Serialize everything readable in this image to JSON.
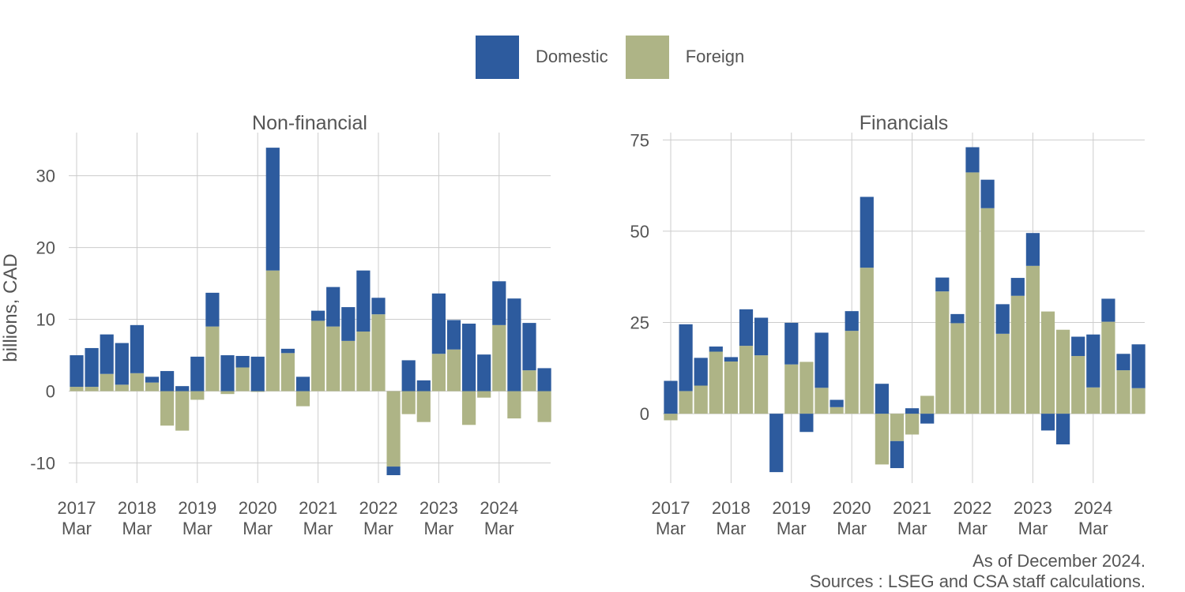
{
  "legend": [
    {
      "label": "Domestic",
      "color": "#2d5b9e"
    },
    {
      "label": "Foreign",
      "color": "#aeb486"
    }
  ],
  "caption": {
    "line1": "As of December 2024.",
    "line2": "Sources : LSEG and CSA staff calculations."
  },
  "ylabel": "billions, CAD",
  "chart_data": [
    {
      "type": "bar",
      "stacked": true,
      "title": "Non-financial",
      "ylabel": "billions, CAD",
      "ylim": [
        -12.8,
        36
      ],
      "yticks": [
        -10,
        0,
        10,
        20,
        30
      ],
      "ytick_labels": [
        "-10",
        "0",
        "10",
        "20",
        "30"
      ],
      "xtick_labels": [
        {
          "year": "2017",
          "month": "Mar"
        },
        {
          "year": "2018",
          "month": "Mar"
        },
        {
          "year": "2019",
          "month": "Mar"
        },
        {
          "year": "2020",
          "month": "Mar"
        },
        {
          "year": "2021",
          "month": "Mar"
        },
        {
          "year": "2022",
          "month": "Mar"
        },
        {
          "year": "2023",
          "month": "Mar"
        },
        {
          "year": "2024",
          "month": "Mar"
        }
      ],
      "categories": [
        "2017 Q1",
        "2017 Q2",
        "2017 Q3",
        "2017 Q4",
        "2018 Q1",
        "2018 Q2",
        "2018 Q3",
        "2018 Q4",
        "2019 Q1",
        "2019 Q2",
        "2019 Q3",
        "2019 Q4",
        "2020 Q1",
        "2020 Q2",
        "2020 Q3",
        "2020 Q4",
        "2021 Q1",
        "2021 Q2",
        "2021 Q3",
        "2021 Q4",
        "2022 Q1",
        "2022 Q2",
        "2022 Q3",
        "2022 Q4",
        "2023 Q1",
        "2023 Q2",
        "2023 Q3",
        "2023 Q4",
        "2024 Q1",
        "2024 Q2",
        "2024 Q3",
        "2024 Q4"
      ],
      "grid": true,
      "series": [
        {
          "name": "Foreign",
          "color": "#aeb486",
          "values": [
            0.6,
            0.6,
            2.4,
            0.9,
            2.5,
            1.2,
            -4.8,
            -5.5,
            -1.2,
            9.0,
            -0.4,
            3.3,
            -0.1,
            16.8,
            5.3,
            -2.1,
            9.8,
            9.0,
            7.0,
            8.3,
            10.7,
            -10.5,
            -3.2,
            -4.3,
            5.2,
            5.8,
            -4.7,
            -0.9,
            9.2,
            -3.8,
            2.9,
            -4.3
          ]
        },
        {
          "name": "Domestic",
          "color": "#2d5b9e",
          "values": [
            4.4,
            5.4,
            5.5,
            5.8,
            6.7,
            0.8,
            2.8,
            0.7,
            4.8,
            4.7,
            5.0,
            1.6,
            4.8,
            17.1,
            0.6,
            2.0,
            1.4,
            5.5,
            4.7,
            8.5,
            2.3,
            -1.2,
            4.3,
            1.5,
            8.4,
            4.1,
            9.4,
            5.1,
            6.1,
            12.9,
            6.6,
            3.2
          ]
        }
      ]
    },
    {
      "type": "bar",
      "stacked": true,
      "title": "Financials",
      "ylim": [
        -19,
        77
      ],
      "yticks": [
        0,
        25,
        50,
        75
      ],
      "ytick_labels": [
        "0",
        "25",
        "50",
        "75"
      ],
      "xtick_labels": [
        {
          "year": "2017",
          "month": "Mar"
        },
        {
          "year": "2018",
          "month": "Mar"
        },
        {
          "year": "2019",
          "month": "Mar"
        },
        {
          "year": "2020",
          "month": "Mar"
        },
        {
          "year": "2021",
          "month": "Mar"
        },
        {
          "year": "2022",
          "month": "Mar"
        },
        {
          "year": "2023",
          "month": "Mar"
        },
        {
          "year": "2024",
          "month": "Mar"
        }
      ],
      "categories": [
        "2017 Q1",
        "2017 Q2",
        "2017 Q3",
        "2017 Q4",
        "2018 Q1",
        "2018 Q2",
        "2018 Q3",
        "2018 Q4",
        "2019 Q1",
        "2019 Q2",
        "2019 Q3",
        "2019 Q4",
        "2020 Q1",
        "2020 Q2",
        "2020 Q3",
        "2020 Q4",
        "2021 Q1",
        "2021 Q2",
        "2021 Q3",
        "2021 Q4",
        "2022 Q1",
        "2022 Q2",
        "2022 Q3",
        "2022 Q4",
        "2023 Q1",
        "2023 Q2",
        "2023 Q3",
        "2023 Q4",
        "2024 Q1",
        "2024 Q2",
        "2024 Q3",
        "2024 Q4"
      ],
      "grid": true,
      "series": [
        {
          "name": "Foreign",
          "color": "#aeb486",
          "values": [
            -1.8,
            6.2,
            7.7,
            17.0,
            14.3,
            18.6,
            16.0,
            0.0,
            13.5,
            14.2,
            7.1,
            1.8,
            22.7,
            40.0,
            -13.9,
            -7.5,
            -5.7,
            4.9,
            33.5,
            24.8,
            66.1,
            56.3,
            21.9,
            32.3,
            40.5,
            28.0,
            23.0,
            15.8,
            7.2,
            25.2,
            11.9,
            7.0
          ]
        },
        {
          "name": "Domestic",
          "color": "#2d5b9e",
          "values": [
            9.0,
            18.3,
            7.6,
            1.4,
            1.2,
            10.0,
            10.3,
            -16.0,
            11.4,
            -5.0,
            15.1,
            2.0,
            5.4,
            19.4,
            8.2,
            -7.4,
            1.5,
            -2.7,
            3.8,
            2.5,
            6.9,
            7.8,
            8.1,
            4.9,
            9.0,
            -4.6,
            -8.4,
            5.3,
            14.5,
            6.3,
            4.5,
            12.0
          ]
        }
      ]
    }
  ]
}
